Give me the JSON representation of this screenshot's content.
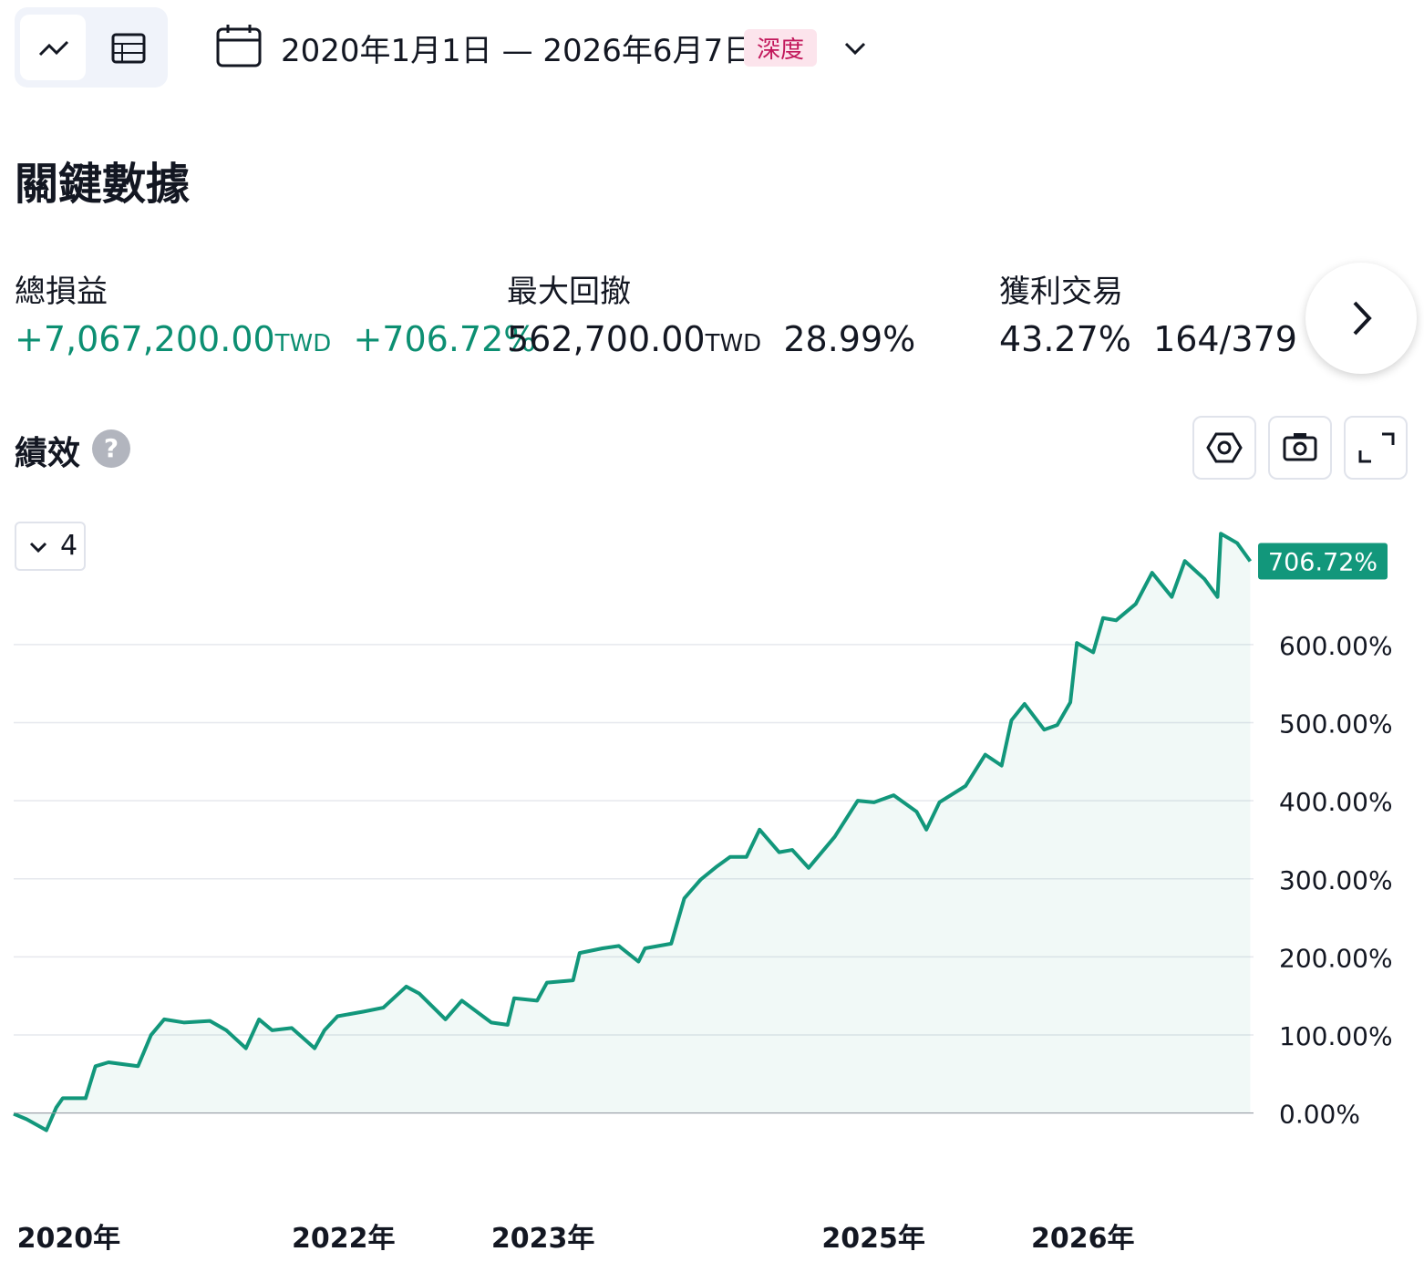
{
  "toolbar": {
    "date_range": "2020年1月1日 — 2026年6月7日",
    "badge": "深度"
  },
  "key_stats": {
    "title": "關鍵數據",
    "items": [
      {
        "label": "總損益",
        "value": "+7,067,200.00",
        "unit": "TWD",
        "percent": "+706.72%"
      },
      {
        "label": "最大回撤",
        "value": "562,700.00",
        "unit": "TWD",
        "percent": "28.99%"
      },
      {
        "label": "獲利交易",
        "percent": "43.27%",
        "value": "164/379"
      }
    ]
  },
  "performance": {
    "title": "績效",
    "series_count": "4"
  },
  "chart_data": {
    "type": "line",
    "series": [
      {
        "color": "#12977b",
        "x": [
          0,
          4,
          10,
          13,
          15,
          22,
          25,
          29,
          38,
          42,
          46,
          52,
          60,
          65,
          71,
          75,
          79,
          85,
          92,
          95,
          99,
          107,
          113,
          120,
          124,
          132,
          137,
          146,
          151,
          153,
          160,
          163,
          171,
          173,
          180,
          185,
          191,
          193,
          201,
          205,
          210,
          215,
          219,
          224,
          228,
          234,
          238,
          243,
          251,
          258,
          263,
          269,
          276,
          279,
          283,
          291,
          297,
          302,
          305,
          309,
          315,
          319,
          323,
          325,
          330,
          333,
          337,
          343,
          348,
          354,
          358,
          364,
          368,
          369,
          374,
          378
        ],
        "values": [
          -1,
          -8,
          -22,
          7,
          19,
          19,
          60,
          65,
          60,
          100,
          120,
          116,
          118,
          106,
          83,
          120,
          106,
          109,
          83,
          106,
          124,
          130,
          135,
          162,
          153,
          120,
          144,
          116,
          113,
          147,
          144,
          167,
          170,
          205,
          211,
          214,
          194,
          211,
          217,
          275,
          299,
          316,
          328,
          328,
          363,
          334,
          337,
          314,
          354,
          400,
          398,
          407,
          386,
          363,
          398,
          419,
          459,
          445,
          503,
          524,
          491,
          497,
          526,
          602,
          590,
          634,
          631,
          652,
          692,
          661,
          707,
          684,
          661,
          742,
          730,
          706.72
        ]
      }
    ],
    "last_value": {
      "value": 706.72,
      "label": "706.72%"
    },
    "xlim": [
      0,
      379
    ],
    "xticks": [
      {
        "value": 1,
        "label": "2020年"
      },
      {
        "value": 85,
        "label": "2022年"
      },
      {
        "value": 146,
        "label": "2023年"
      },
      {
        "value": 247,
        "label": "2025年"
      },
      {
        "value": 311,
        "label": "2026年"
      }
    ],
    "ylim": [
      -116,
      754
    ],
    "yticks": [
      {
        "value": 0,
        "label": "0.00%"
      },
      {
        "value": 100,
        "label": "100.00%"
      },
      {
        "value": 200,
        "label": "200.00%"
      },
      {
        "value": 300,
        "label": "300.00%"
      },
      {
        "value": 400,
        "label": "400.00%"
      },
      {
        "value": 500,
        "label": "500.00%"
      },
      {
        "value": 600,
        "label": "600.00%"
      }
    ],
    "grid": true
  }
}
